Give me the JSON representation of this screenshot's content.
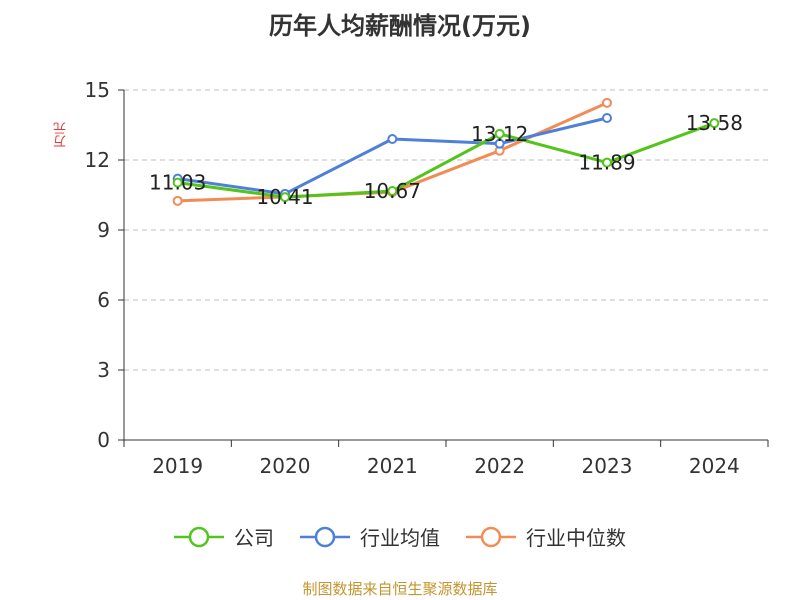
{
  "chart_data": {
    "type": "line",
    "title": "历年人均薪酬情况(万元)",
    "ylabel": "万元",
    "xlabel": "",
    "categories": [
      "2019",
      "2020",
      "2021",
      "2022",
      "2023",
      "2024"
    ],
    "ylim": [
      0,
      15
    ],
    "yticks": [
      0,
      3,
      6,
      9,
      12,
      15
    ],
    "grid": true,
    "legend_position": "bottom",
    "series": [
      {
        "name": "公司",
        "color": "#52c41a",
        "values": [
          11.03,
          10.41,
          10.67,
          13.12,
          11.89,
          13.58
        ],
        "labels": [
          "11.03",
          "10.41",
          "10.67",
          "13.12",
          "11.89",
          "13.58"
        ]
      },
      {
        "name": "行业均值",
        "color": "#4e7fd9",
        "values": [
          11.2,
          10.55,
          12.9,
          12.7,
          13.8,
          null
        ]
      },
      {
        "name": "行业中位数",
        "color": "#f28c57",
        "values": [
          10.25,
          10.42,
          10.62,
          12.4,
          14.45,
          null
        ]
      }
    ]
  },
  "source": "制图数据来自恒生聚源数据库"
}
